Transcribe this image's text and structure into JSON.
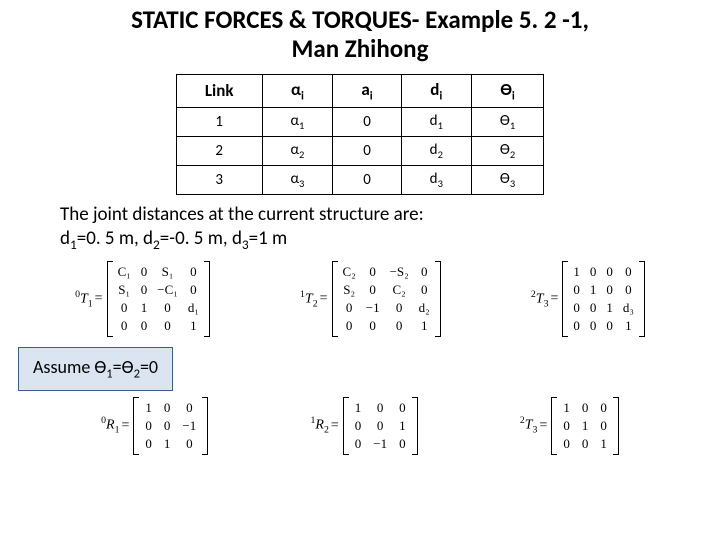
{
  "title_line1": "STATIC FORCES & TORQUES- Example 5. 2 -1,",
  "title_line2": "Man Zhihong",
  "table": {
    "headers": {
      "h0": "Link",
      "h1": "α",
      "h1s": "i",
      "h2": "a",
      "h2s": "i",
      "h3": "d",
      "h3s": "i",
      "h4": "ϴ",
      "h4s": "i"
    },
    "rows": [
      {
        "link": "1",
        "alpha": "α",
        "alphas": "1",
        "a": "0",
        "d": "d",
        "ds": "1",
        "th": "ϴ",
        "ths": "1"
      },
      {
        "link": "2",
        "alpha": "α",
        "alphas": "2",
        "a": "0",
        "d": "d",
        "ds": "2",
        "th": "ϴ",
        "ths": "2"
      },
      {
        "link": "3",
        "alpha": "α",
        "alphas": "3",
        "a": "0",
        "d": "d",
        "ds": "3",
        "th": "ϴ",
        "ths": "3"
      }
    ]
  },
  "body1": "The joint distances at the current structure are:",
  "body2a": "d",
  "body2as": "1",
  "body2b": "=0. 5 m, d",
  "body2bs": "2",
  "body2c": "=-0. 5 m, d",
  "body2cs": "3",
  "body2d": "=1 m",
  "assume_a": "Assume ϴ",
  "assume_as": "1",
  "assume_b": "=ϴ",
  "assume_bs": "2",
  "assume_c": "=0",
  "mat": {
    "T01": {
      "label": {
        "pre": "0",
        "sym": "T",
        "post": "1"
      },
      "rows": [
        [
          "C₁",
          "0",
          "S₁",
          "0"
        ],
        [
          "S₁",
          "0",
          "−C₁",
          "0"
        ],
        [
          "0",
          "1",
          "0",
          "d₁"
        ],
        [
          "0",
          "0",
          "0",
          "1"
        ]
      ]
    },
    "T12": {
      "label": {
        "pre": "1",
        "sym": "T",
        "post": "2"
      },
      "rows": [
        [
          "C₂",
          "0",
          "−S₂",
          "0"
        ],
        [
          "S₂",
          "0",
          "C₂",
          "0"
        ],
        [
          "0",
          "−1",
          "0",
          "d₂"
        ],
        [
          "0",
          "0",
          "0",
          "1"
        ]
      ]
    },
    "T23": {
      "label": {
        "pre": "2",
        "sym": "T",
        "post": "3"
      },
      "rows": [
        [
          "1",
          "0",
          "0",
          "0"
        ],
        [
          "0",
          "1",
          "0",
          "0"
        ],
        [
          "0",
          "0",
          "1",
          "d₃"
        ],
        [
          "0",
          "0",
          "0",
          "1"
        ]
      ]
    },
    "R01": {
      "label": {
        "pre": "0",
        "sym": "R",
        "post": "1"
      },
      "rows": [
        [
          "1",
          "0",
          "0"
        ],
        [
          "0",
          "0",
          "−1"
        ],
        [
          "0",
          "1",
          "0"
        ]
      ]
    },
    "R12": {
      "label": {
        "pre": "1",
        "sym": "R",
        "post": "2"
      },
      "rows": [
        [
          "1",
          "0",
          "0"
        ],
        [
          "0",
          "0",
          "1"
        ],
        [
          "0",
          "−1",
          "0"
        ]
      ]
    },
    "T23b": {
      "label": {
        "pre": "2",
        "sym": "T",
        "post": "3"
      },
      "rows": [
        [
          "1",
          "0",
          "0"
        ],
        [
          "0",
          "1",
          "0"
        ],
        [
          "0",
          "0",
          "1"
        ]
      ]
    }
  }
}
